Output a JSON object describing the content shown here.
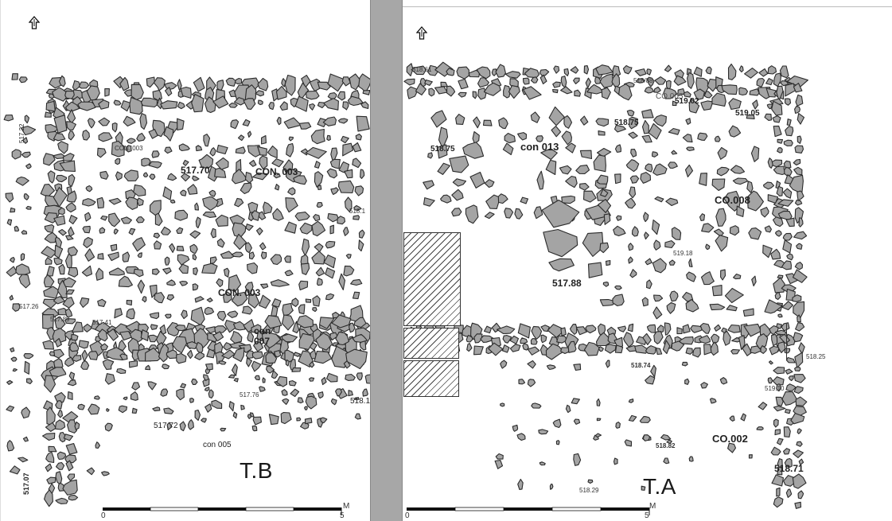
{
  "trenches": {
    "b": {
      "name": "T.B",
      "labels": {
        "con003_small": "CON. 003",
        "e517_70": "517.70",
        "con003_upper": "CON. 003",
        "con003_lower": "CON. 003",
        "con007_top": "con",
        "con007_bottom": "007",
        "e517_76": "517.76",
        "e517_72": "517.72",
        "con005": "con 005",
        "e518_12": "518.12",
        "e517_41": "517.41",
        "e517_26": "517.26",
        "e517_07": "517.07",
        "e517_22": "517.22",
        "e517_89": "517.89",
        "e518_1": "518.1"
      }
    },
    "a": {
      "name": "T.A",
      "labels": {
        "e518_61": "518.61",
        "co005": "CO.005",
        "e518_88": "518/88",
        "e519_02": "519.02",
        "e518_75_top": "518.75",
        "e519_05": "519.05",
        "e518_75_left": "518.75",
        "con013": "con 013",
        "co008": "CO.008",
        "e519_18": "519.18",
        "e517_88": "517.88",
        "e518_74": "518.74",
        "e518_25": "518.25",
        "e519_10": "519.10",
        "co002": "CO.002",
        "e518_82": "518.82",
        "e518_71": "518.71",
        "e518_29": "518.29"
      }
    }
  },
  "scale": {
    "b": {
      "start": "0",
      "end": "5",
      "unit": "M"
    },
    "a": {
      "start": "0",
      "end": "5",
      "unit": "M"
    }
  },
  "colors": {
    "stone_fill": "#a4a4a4",
    "stone_stroke": "#2b2b2b",
    "divider": "#a7a7a7"
  },
  "icons": {
    "north_arrow": "north-arrow-icon"
  }
}
